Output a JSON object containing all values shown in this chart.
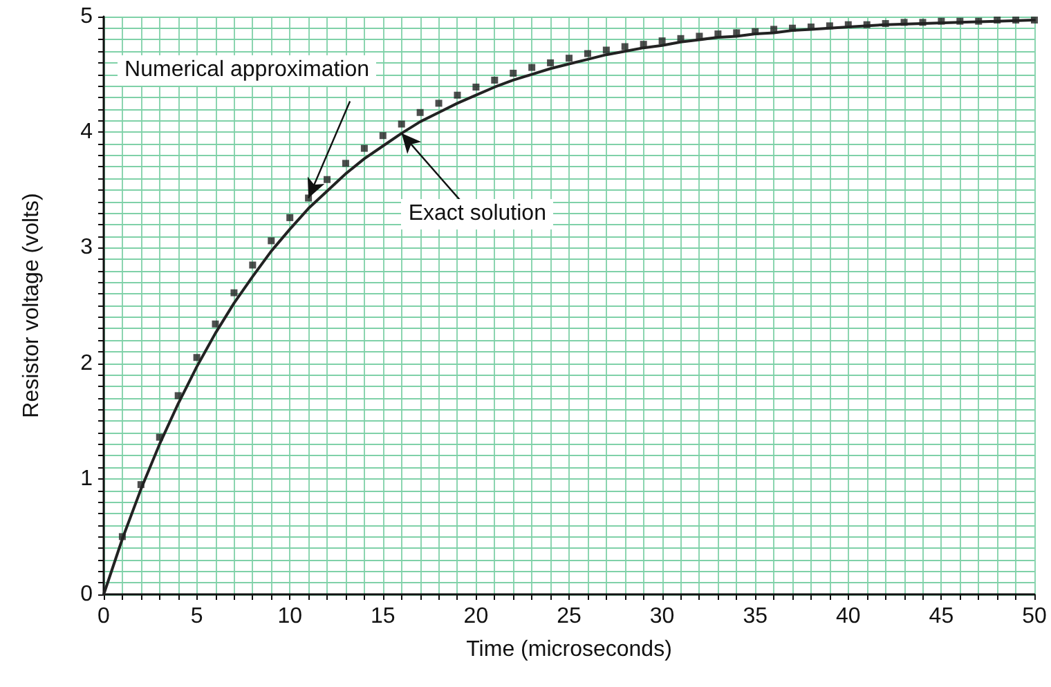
{
  "chart_data": {
    "type": "scatter",
    "xlabel": "Time (microseconds)",
    "ylabel": "Resistor voltage (volts)",
    "xlim": [
      0,
      50
    ],
    "xticks": [
      0,
      {
        "value": 1,
        "label": null
      },
      {
        "value": 2,
        "label": null
      },
      {
        "value": 3,
        "label": null
      },
      {
        "value": 4,
        "label": null
      },
      5,
      {
        "value": 6,
        "label": null
      },
      {
        "value": 7,
        "label": null
      },
      {
        "value": 8,
        "label": null
      },
      {
        "value": 9,
        "label": null
      },
      10,
      {
        "value": 11,
        "label": null
      },
      {
        "value": 12,
        "label": null
      },
      {
        "value": 13,
        "label": null
      },
      {
        "value": 14,
        "label": null
      },
      15,
      {
        "value": 16,
        "label": null
      },
      {
        "value": 17,
        "label": null
      },
      {
        "value": 18,
        "label": null
      },
      {
        "value": 19,
        "label": null
      },
      20,
      {
        "value": 21,
        "label": null
      },
      {
        "value": 22,
        "label": null
      },
      {
        "value": 23,
        "label": null
      },
      {
        "value": 24,
        "label": null
      },
      25,
      {
        "value": 26,
        "label": null
      },
      {
        "value": 27,
        "label": null
      },
      {
        "value": 28,
        "label": null
      },
      {
        "value": 29,
        "label": null
      },
      30,
      {
        "value": 31,
        "label": null
      },
      {
        "value": 32,
        "label": null
      },
      {
        "value": 33,
        "label": null
      },
      {
        "value": 34,
        "label": null
      },
      35,
      {
        "value": 36,
        "label": null
      },
      {
        "value": 37,
        "label": null
      },
      {
        "value": 38,
        "label": null
      },
      {
        "value": 39,
        "label": null
      },
      40,
      {
        "value": 41,
        "label": null
      },
      {
        "value": 42,
        "label": null
      },
      {
        "value": 43,
        "label": null
      },
      {
        "value": 44,
        "label": null
      },
      45,
      {
        "value": 46,
        "label": null
      },
      {
        "value": 47,
        "label": null
      },
      {
        "value": 48,
        "label": null
      },
      {
        "value": 49,
        "label": null
      },
      50
    ],
    "ylim": [
      0,
      5
    ],
    "yticks": [
      0,
      {
        "value": 0.1,
        "label": null
      },
      {
        "value": 0.2,
        "label": null
      },
      {
        "value": 0.3,
        "label": null
      },
      {
        "value": 0.4,
        "label": null
      },
      {
        "value": 0.5,
        "label": null
      },
      {
        "value": 0.6,
        "label": null
      },
      {
        "value": 0.7,
        "label": null
      },
      {
        "value": 0.8,
        "label": null
      },
      {
        "value": 0.9,
        "label": null
      },
      1,
      {
        "value": 1.1,
        "label": null
      },
      {
        "value": 1.2,
        "label": null
      },
      {
        "value": 1.3,
        "label": null
      },
      {
        "value": 1.4,
        "label": null
      },
      {
        "value": 1.5,
        "label": null
      },
      {
        "value": 1.6,
        "label": null
      },
      {
        "value": 1.7,
        "label": null
      },
      {
        "value": 1.8,
        "label": null
      },
      {
        "value": 1.9,
        "label": null
      },
      2,
      {
        "value": 2.1,
        "label": null
      },
      {
        "value": 2.2,
        "label": null
      },
      {
        "value": 2.3,
        "label": null
      },
      {
        "value": 2.4,
        "label": null
      },
      {
        "value": 2.5,
        "label": null
      },
      {
        "value": 2.6,
        "label": null
      },
      {
        "value": 2.7,
        "label": null
      },
      {
        "value": 2.8,
        "label": null
      },
      {
        "value": 2.9,
        "label": null
      },
      3,
      {
        "value": 3.1,
        "label": null
      },
      {
        "value": 3.2,
        "label": null
      },
      {
        "value": 3.3,
        "label": null
      },
      {
        "value": 3.4,
        "label": null
      },
      {
        "value": 3.5,
        "label": null
      },
      {
        "value": 3.6,
        "label": null
      },
      {
        "value": 3.7,
        "label": null
      },
      {
        "value": 3.8,
        "label": null
      },
      {
        "value": 3.9,
        "label": null
      },
      4,
      {
        "value": 4.1,
        "label": null
      },
      {
        "value": 4.2,
        "label": null
      },
      {
        "value": 4.3,
        "label": null
      },
      {
        "value": 4.4,
        "label": null
      },
      {
        "value": 4.5,
        "label": null
      },
      {
        "value": 4.6,
        "label": null
      },
      {
        "value": 4.7,
        "label": null
      },
      {
        "value": 4.8,
        "label": null
      },
      {
        "value": 4.9,
        "label": null
      },
      5
    ],
    "grid": true,
    "series": [
      {
        "marker": "square",
        "color": "#222222",
        "x": [
          1,
          2,
          3,
          4,
          5,
          6,
          7,
          8,
          9,
          10,
          11,
          12,
          13,
          14,
          15,
          16,
          17,
          18,
          19,
          20,
          21,
          22,
          23,
          24,
          25,
          26,
          27,
          28,
          29,
          30,
          31,
          32,
          33,
          34,
          35,
          36,
          37,
          38,
          39,
          40,
          41,
          42,
          43,
          44,
          45,
          46,
          47,
          48,
          49,
          50
        ],
        "values": [
          0.5,
          0.95,
          1.36,
          1.72,
          2.05,
          2.34,
          2.61,
          2.85,
          3.06,
          3.26,
          3.43,
          3.59,
          3.73,
          3.86,
          3.97,
          4.07,
          4.17,
          4.25,
          4.32,
          4.39,
          4.45,
          4.51,
          4.56,
          4.6,
          4.64,
          4.68,
          4.71,
          4.74,
          4.76,
          4.79,
          4.81,
          4.83,
          4.85,
          4.86,
          4.87,
          4.89,
          4.9,
          4.91,
          4.92,
          4.93,
          4.93,
          4.94,
          4.95,
          4.95,
          4.96,
          4.96,
          4.96,
          4.97,
          4.97,
          4.97
        ]
      },
      {
        "type": "line",
        "marker": "none",
        "line_style": "solid",
        "color": "#222222",
        "x": [
          0,
          1,
          2,
          3,
          4,
          5,
          6,
          7,
          8,
          9,
          10,
          11,
          12,
          13,
          14,
          15,
          16,
          17,
          18,
          19,
          20,
          21,
          22,
          23,
          24,
          25,
          26,
          27,
          28,
          29,
          30,
          31,
          32,
          33,
          34,
          35,
          36,
          37,
          38,
          39,
          40,
          42,
          44,
          46,
          48,
          50
        ],
        "values": [
          0,
          0.48,
          0.91,
          1.3,
          1.65,
          1.97,
          2.26,
          2.52,
          2.75,
          2.97,
          3.16,
          3.34,
          3.49,
          3.64,
          3.77,
          3.88,
          3.99,
          4.09,
          4.17,
          4.25,
          4.32,
          4.39,
          4.45,
          4.5,
          4.55,
          4.59,
          4.63,
          4.67,
          4.7,
          4.73,
          4.75,
          4.78,
          4.8,
          4.82,
          4.83,
          4.85,
          4.86,
          4.88,
          4.89,
          4.9,
          4.91,
          4.93,
          4.94,
          4.95,
          4.96,
          4.97
        ]
      }
    ],
    "annotations": [
      {
        "text": "Numerical approximation",
        "x": 11,
        "y": 3.43
      },
      {
        "text": "Exact solution",
        "x": 16,
        "y": 3.99
      }
    ]
  }
}
